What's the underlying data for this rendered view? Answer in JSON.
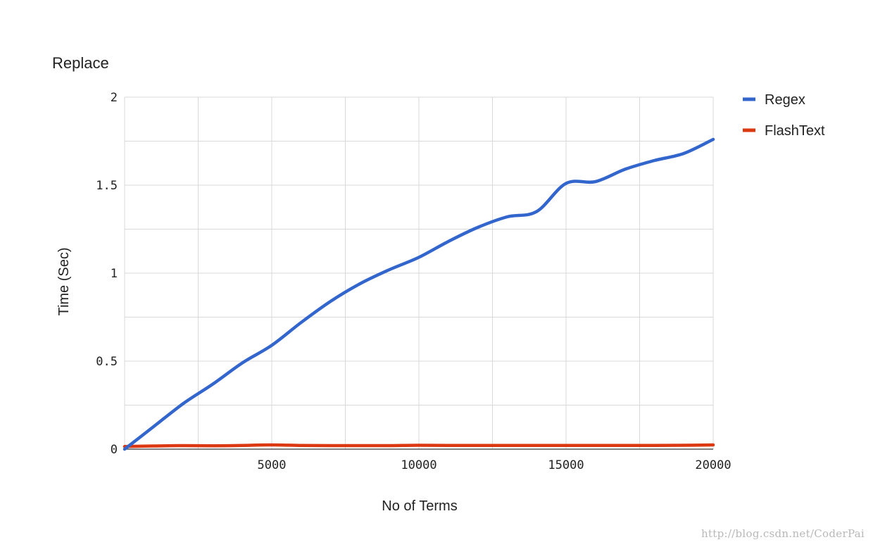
{
  "chart_data": {
    "type": "line",
    "title": "Replace",
    "xlabel": "No of Terms",
    "ylabel": "Time (Sec)",
    "xlim": [
      0,
      20000
    ],
    "ylim": [
      0,
      2
    ],
    "xticks": [
      5000,
      10000,
      15000,
      20000
    ],
    "yticks": [
      0,
      0.5,
      1,
      1.5,
      2
    ],
    "xtick_labels": [
      "5000",
      "10000",
      "15000",
      "20000"
    ],
    "ytick_labels": [
      "0",
      "0.5",
      "1",
      "1.5",
      "2"
    ],
    "grid": true,
    "legend_position": "right",
    "x": [
      0,
      1000,
      2000,
      3000,
      4000,
      5000,
      6000,
      7000,
      8000,
      9000,
      10000,
      11000,
      12000,
      13000,
      14000,
      15000,
      16000,
      17000,
      18000,
      19000,
      20000
    ],
    "series": [
      {
        "name": "Regex",
        "color": "#3366cc",
        "values": [
          0.0,
          0.13,
          0.26,
          0.37,
          0.49,
          0.59,
          0.72,
          0.84,
          0.94,
          1.02,
          1.09,
          1.18,
          1.26,
          1.32,
          1.35,
          1.51,
          1.52,
          1.59,
          1.64,
          1.68,
          1.76
        ]
      },
      {
        "name": "FlashText",
        "color": "#dc3912",
        "values": [
          0.015,
          0.018,
          0.02,
          0.019,
          0.021,
          0.024,
          0.021,
          0.02,
          0.02,
          0.02,
          0.022,
          0.021,
          0.021,
          0.021,
          0.021,
          0.021,
          0.021,
          0.021,
          0.021,
          0.022,
          0.024
        ]
      }
    ]
  },
  "watermark": "http://blog.csdn.net/CoderPai"
}
